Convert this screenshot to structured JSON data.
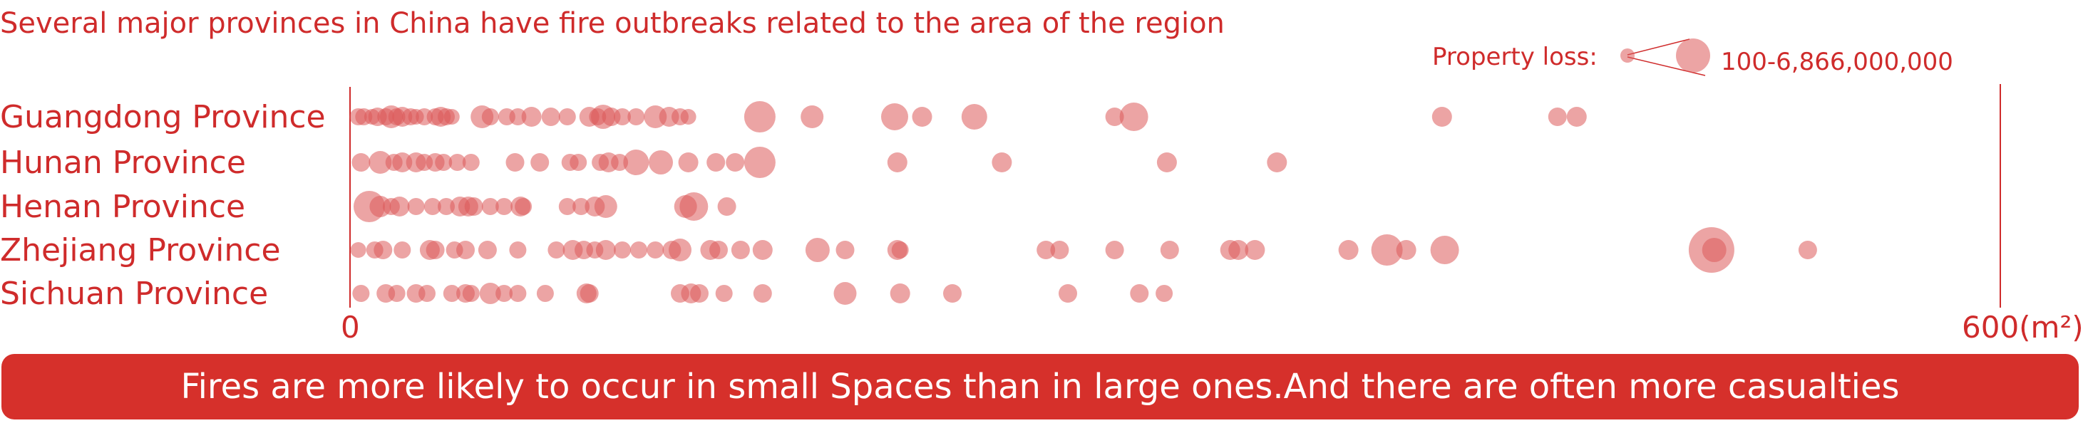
{
  "chart_data": {
    "type": "scatter",
    "title": "Several major provinces in China have fire outbreaks related to the area of the region",
    "x_axis": {
      "min_label": "0",
      "max_label": "600(m²)",
      "range": [
        0,
        600
      ]
    },
    "legend": {
      "label": "Property loss:",
      "range_text": "100-6,866,000,000"
    },
    "size_range": [
      100,
      6866000000
    ],
    "categories": [
      "Guangdong Province",
      "Hunan Province",
      "Henan Province",
      "Zhejiang Province",
      "Sichuan Province"
    ],
    "series": [
      {
        "name": "Guangdong Province",
        "points": [
          {
            "x": 3,
            "r": 12
          },
          {
            "x": 5,
            "r": 12
          },
          {
            "x": 8,
            "r": 11
          },
          {
            "x": 10,
            "r": 13
          },
          {
            "x": 13,
            "r": 12
          },
          {
            "x": 15,
            "r": 16
          },
          {
            "x": 17,
            "r": 12
          },
          {
            "x": 19,
            "r": 14
          },
          {
            "x": 22,
            "r": 12
          },
          {
            "x": 24,
            "r": 11
          },
          {
            "x": 27,
            "r": 12
          },
          {
            "x": 31,
            "r": 12
          },
          {
            "x": 33,
            "r": 14
          },
          {
            "x": 35,
            "r": 12
          },
          {
            "x": 37,
            "r": 11
          },
          {
            "x": 48,
            "r": 16
          },
          {
            "x": 51,
            "r": 12
          },
          {
            "x": 57,
            "r": 12
          },
          {
            "x": 61,
            "r": 12
          },
          {
            "x": 66,
            "r": 14
          },
          {
            "x": 73,
            "r": 13
          },
          {
            "x": 79,
            "r": 12
          },
          {
            "x": 87,
            "r": 14
          },
          {
            "x": 90,
            "r": 12
          },
          {
            "x": 92,
            "r": 17
          },
          {
            "x": 95,
            "r": 13
          },
          {
            "x": 99,
            "r": 12
          },
          {
            "x": 104,
            "r": 12
          },
          {
            "x": 111,
            "r": 16
          },
          {
            "x": 116,
            "r": 14
          },
          {
            "x": 120,
            "r": 12
          },
          {
            "x": 123,
            "r": 11
          },
          {
            "x": 149,
            "r": 22
          },
          {
            "x": 168,
            "r": 16
          },
          {
            "x": 198,
            "r": 19
          },
          {
            "x": 208,
            "r": 14
          },
          {
            "x": 227,
            "r": 18
          },
          {
            "x": 278,
            "r": 13
          },
          {
            "x": 285,
            "r": 20
          },
          {
            "x": 397,
            "r": 14
          },
          {
            "x": 439,
            "r": 13
          },
          {
            "x": 446,
            "r": 14
          }
        ]
      },
      {
        "name": "Hunan Province",
        "points": [
          {
            "x": 4,
            "r": 13
          },
          {
            "x": 11,
            "r": 16
          },
          {
            "x": 16,
            "r": 12
          },
          {
            "x": 19,
            "r": 14
          },
          {
            "x": 24,
            "r": 14
          },
          {
            "x": 27,
            "r": 12
          },
          {
            "x": 31,
            "r": 13
          },
          {
            "x": 34,
            "r": 12
          },
          {
            "x": 39,
            "r": 12
          },
          {
            "x": 44,
            "r": 12
          },
          {
            "x": 60,
            "r": 13
          },
          {
            "x": 69,
            "r": 13
          },
          {
            "x": 80,
            "r": 12
          },
          {
            "x": 83,
            "r": 12
          },
          {
            "x": 91,
            "r": 12
          },
          {
            "x": 94,
            "r": 14
          },
          {
            "x": 98,
            "r": 12
          },
          {
            "x": 104,
            "r": 18
          },
          {
            "x": 113,
            "r": 17
          },
          {
            "x": 123,
            "r": 14
          },
          {
            "x": 133,
            "r": 13
          },
          {
            "x": 140,
            "r": 13
          },
          {
            "x": 149,
            "r": 22
          },
          {
            "x": 199,
            "r": 14
          },
          {
            "x": 237,
            "r": 14
          },
          {
            "x": 297,
            "r": 14
          },
          {
            "x": 337,
            "r": 14
          }
        ]
      },
      {
        "name": "Henan Province",
        "points": [
          {
            "x": 7,
            "r": 22
          },
          {
            "x": 11,
            "r": 15
          },
          {
            "x": 15,
            "r": 12
          },
          {
            "x": 18,
            "r": 14
          },
          {
            "x": 24,
            "r": 12
          },
          {
            "x": 30,
            "r": 12
          },
          {
            "x": 35,
            "r": 12
          },
          {
            "x": 40,
            "r": 14
          },
          {
            "x": 43,
            "r": 14
          },
          {
            "x": 45,
            "r": 13
          },
          {
            "x": 51,
            "r": 12
          },
          {
            "x": 56,
            "r": 12
          },
          {
            "x": 63,
            "r": 12
          },
          {
            "x": 62,
            "r": 14
          },
          {
            "x": 79,
            "r": 12
          },
          {
            "x": 84,
            "r": 12
          },
          {
            "x": 89,
            "r": 14
          },
          {
            "x": 93,
            "r": 16
          },
          {
            "x": 122,
            "r": 16
          },
          {
            "x": 125,
            "r": 20
          },
          {
            "x": 137,
            "r": 13
          }
        ]
      },
      {
        "name": "Zhejiang Province",
        "points": [
          {
            "x": 3,
            "r": 11
          },
          {
            "x": 9,
            "r": 12
          },
          {
            "x": 12,
            "r": 13
          },
          {
            "x": 19,
            "r": 12
          },
          {
            "x": 29,
            "r": 14
          },
          {
            "x": 31,
            "r": 13
          },
          {
            "x": 38,
            "r": 12
          },
          {
            "x": 42,
            "r": 13
          },
          {
            "x": 50,
            "r": 13
          },
          {
            "x": 61,
            "r": 12
          },
          {
            "x": 75,
            "r": 12
          },
          {
            "x": 81,
            "r": 14
          },
          {
            "x": 85,
            "r": 13
          },
          {
            "x": 89,
            "r": 12
          },
          {
            "x": 93,
            "r": 14
          },
          {
            "x": 99,
            "r": 12
          },
          {
            "x": 105,
            "r": 12
          },
          {
            "x": 111,
            "r": 12
          },
          {
            "x": 117,
            "r": 13
          },
          {
            "x": 120,
            "r": 16
          },
          {
            "x": 131,
            "r": 14
          },
          {
            "x": 134,
            "r": 13
          },
          {
            "x": 142,
            "r": 13
          },
          {
            "x": 150,
            "r": 14
          },
          {
            "x": 170,
            "r": 17
          },
          {
            "x": 180,
            "r": 13
          },
          {
            "x": 199,
            "r": 14
          },
          {
            "x": 200,
            "r": 12
          },
          {
            "x": 253,
            "r": 13
          },
          {
            "x": 258,
            "r": 13
          },
          {
            "x": 278,
            "r": 13
          },
          {
            "x": 298,
            "r": 13
          },
          {
            "x": 320,
            "r": 14
          },
          {
            "x": 323,
            "r": 14
          },
          {
            "x": 329,
            "r": 14
          },
          {
            "x": 363,
            "r": 14
          },
          {
            "x": 377,
            "r": 22
          },
          {
            "x": 384,
            "r": 14
          },
          {
            "x": 398,
            "r": 20
          },
          {
            "x": 495,
            "r": 32
          },
          {
            "x": 496,
            "r": 17
          },
          {
            "x": 530,
            "r": 13
          }
        ]
      },
      {
        "name": "Sichuan Province",
        "points": [
          {
            "x": 4,
            "r": 12
          },
          {
            "x": 13,
            "r": 13
          },
          {
            "x": 17,
            "r": 12
          },
          {
            "x": 24,
            "r": 13
          },
          {
            "x": 28,
            "r": 12
          },
          {
            "x": 37,
            "r": 12
          },
          {
            "x": 42,
            "r": 13
          },
          {
            "x": 44,
            "r": 12
          },
          {
            "x": 51,
            "r": 15
          },
          {
            "x": 56,
            "r": 12
          },
          {
            "x": 61,
            "r": 12
          },
          {
            "x": 71,
            "r": 12
          },
          {
            "x": 86,
            "r": 14
          },
          {
            "x": 87,
            "r": 13
          },
          {
            "x": 120,
            "r": 13
          },
          {
            "x": 124,
            "r": 14
          },
          {
            "x": 127,
            "r": 13
          },
          {
            "x": 136,
            "r": 12
          },
          {
            "x": 150,
            "r": 13
          },
          {
            "x": 180,
            "r": 16
          },
          {
            "x": 200,
            "r": 14
          },
          {
            "x": 219,
            "r": 13
          },
          {
            "x": 261,
            "r": 13
          },
          {
            "x": 287,
            "r": 13
          },
          {
            "x": 296,
            "r": 12
          }
        ]
      }
    ]
  },
  "banner_text": "Fires are more likely to occur in small Spaces than in large ones.And there are often more casualties"
}
